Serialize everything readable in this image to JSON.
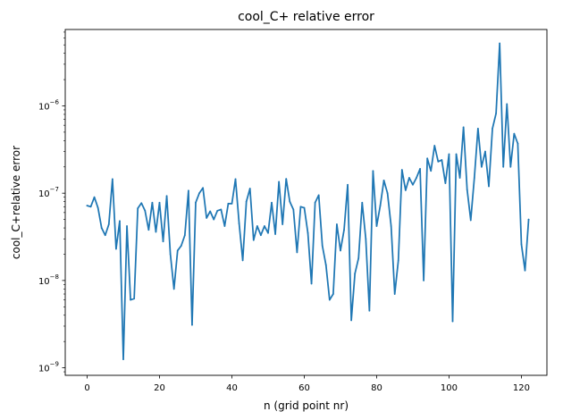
{
  "chart_data": {
    "type": "line",
    "title": "cool_C+ relative error",
    "xlabel": "n (grid point nr)",
    "ylabel": "cool_C+relative error",
    "xlim": [
      -6.05,
      127.05
    ],
    "ylim": [
      8.2e-10,
      7.5e-06
    ],
    "yscale": "log",
    "grid": false,
    "line_color": "#1f77b4",
    "xticks": [
      {
        "value": 0,
        "label": "0"
      },
      {
        "value": 20,
        "label": "20"
      },
      {
        "value": 40,
        "label": "40"
      },
      {
        "value": 60,
        "label": "60"
      },
      {
        "value": 80,
        "label": "80"
      },
      {
        "value": 100,
        "label": "100"
      },
      {
        "value": 120,
        "label": "120"
      }
    ],
    "yticks": [
      {
        "value": 1e-09,
        "base": "10",
        "exp": "−9"
      },
      {
        "value": 1e-08,
        "base": "10",
        "exp": "−8"
      },
      {
        "value": 1e-07,
        "base": "10",
        "exp": "−7"
      },
      {
        "value": 1e-06,
        "base": "10",
        "exp": "−6"
      }
    ],
    "series": [
      {
        "values": [
          7.2e-08,
          7e-08,
          9e-08,
          6.8e-08,
          4e-08,
          3.3e-08,
          4.4e-08,
          1.45e-07,
          2.3e-08,
          4.8e-08,
          1.25e-09,
          4.2e-08,
          6e-09,
          6.2e-09,
          6.7e-08,
          7.7e-08,
          6.3e-08,
          3.8e-08,
          7.8e-08,
          3.6e-08,
          7.8e-08,
          2.8e-08,
          9.3e-08,
          2e-08,
          8e-09,
          2.2e-08,
          2.5e-08,
          3.3e-08,
          1.07e-07,
          3.1e-09,
          7.8e-08,
          1e-07,
          1.15e-07,
          5.2e-08,
          6.2e-08,
          5e-08,
          6.3e-08,
          6.5e-08,
          4.2e-08,
          7.6e-08,
          7.6e-08,
          1.45e-07,
          4.5e-08,
          1.7e-08,
          8e-08,
          1.13e-07,
          2.9e-08,
          4.2e-08,
          3.3e-08,
          4.2e-08,
          3.5e-08,
          7.8e-08,
          3.4e-08,
          1.35e-07,
          4.4e-08,
          1.46e-07,
          8e-08,
          6.5e-08,
          2.1e-08,
          7e-08,
          6.8e-08,
          3.5e-08,
          9.2e-09,
          7.8e-08,
          9.5e-08,
          2.5e-08,
          1.5e-08,
          6e-09,
          7e-09,
          4.4e-08,
          2.2e-08,
          3.8e-08,
          1.25e-07,
          3.5e-09,
          1.2e-08,
          1.8e-08,
          7.8e-08,
          3e-08,
          4.5e-09,
          1.8e-07,
          4.2e-08,
          7.2e-08,
          1.4e-07,
          1e-07,
          4.2e-08,
          7e-09,
          1.7e-08,
          1.85e-07,
          1.08e-07,
          1.5e-07,
          1.25e-07,
          1.5e-07,
          1.9e-07,
          1e-08,
          2.5e-07,
          1.8e-07,
          3.5e-07,
          2.3e-07,
          2.4e-07,
          1.3e-07,
          2.8e-07,
          3.4e-09,
          2.8e-07,
          1.5e-07,
          5.7e-07,
          1.1e-07,
          4.9e-08,
          1.5e-07,
          5.5e-07,
          2e-07,
          3e-07,
          1.2e-07,
          5.5e-07,
          8.2e-07,
          5.2e-06,
          2e-07,
          1.05e-06,
          2e-07,
          4.8e-07,
          3.7e-07,
          2.6e-08,
          1.3e-08,
          5e-08
        ]
      }
    ]
  }
}
